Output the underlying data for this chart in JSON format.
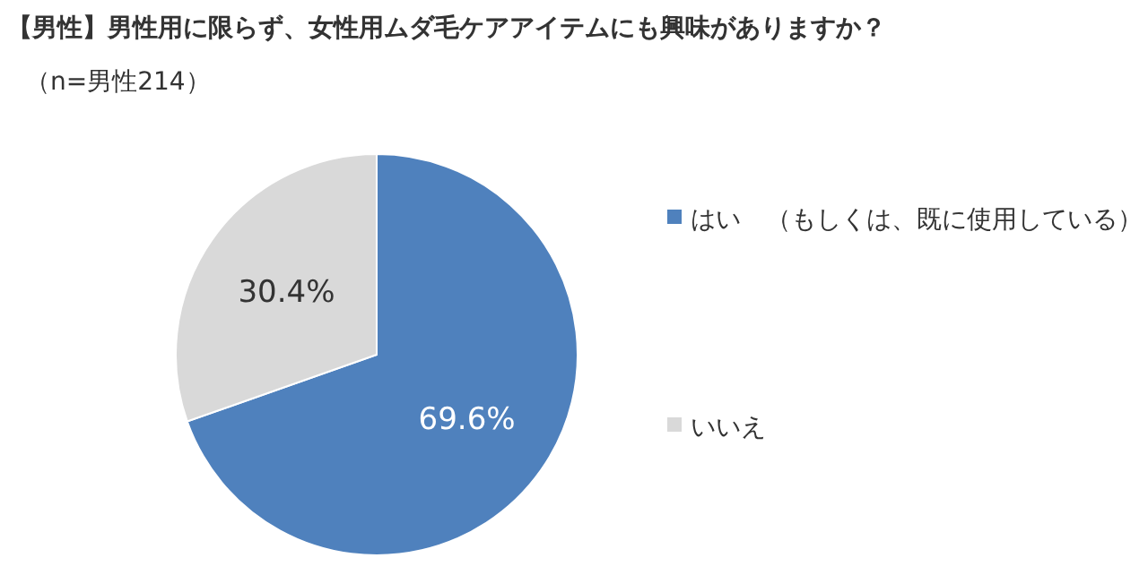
{
  "chart_data": {
    "type": "pie",
    "title": "【男性】男性用に限らず、女性用ムダ毛ケアアイテムにも興味がありますか？",
    "subtitle": "（n=男性214）",
    "categories": [
      "はい　（もしくは、既に使用している）",
      "いいえ"
    ],
    "values": [
      69.6,
      30.4
    ],
    "value_labels": [
      "69.6%",
      "30.4%"
    ],
    "colors": [
      "#4f81bd",
      "#d9d9d9"
    ],
    "legend": "right"
  }
}
